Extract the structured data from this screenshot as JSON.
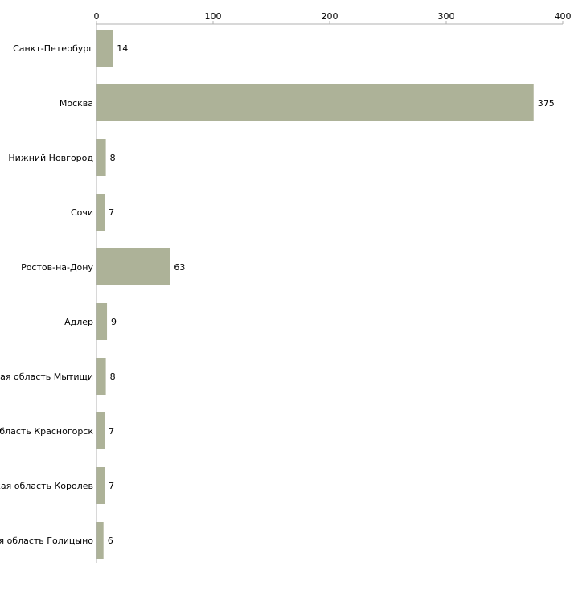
{
  "chart_data": {
    "type": "bar",
    "orientation": "horizontal",
    "title": "",
    "xlabel": "",
    "ylabel": "",
    "categories": [
      "Санкт-Петербург",
      "Москва",
      "Нижний Новгород",
      "Сочи",
      "Ростов-на-Дону",
      "Адлер",
      "Московская область Мытищи",
      "Московская область Красногорск",
      "Московская область Королев",
      "Московская область Голицыно"
    ],
    "values": [
      14,
      375,
      8,
      7,
      63,
      9,
      8,
      7,
      7,
      6
    ],
    "data_labels": [
      "14",
      "375",
      "8",
      "7",
      "63",
      "9",
      "8",
      "7",
      "7",
      "6"
    ],
    "xlim": [
      0,
      400
    ],
    "xticks": [
      0,
      100,
      200,
      300,
      400
    ],
    "xtick_labels": [
      "0",
      "100",
      "200",
      "300",
      "400"
    ],
    "axis_position": "top",
    "grid": false,
    "bar_color": "#adb298",
    "axis_color": "#b0b0b0"
  }
}
